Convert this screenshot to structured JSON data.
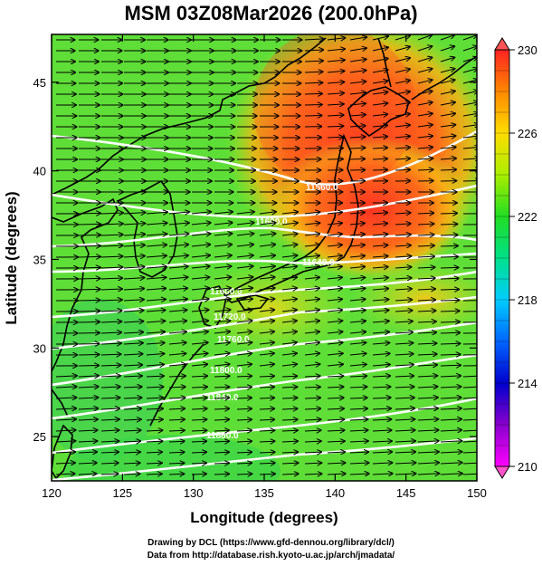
{
  "title": "MSM 03Z08Mar2026 (200.0hPa)",
  "x_axis": {
    "label": "Longitude (degrees)",
    "range": [
      120,
      150
    ],
    "ticks": [
      "120",
      "125",
      "130",
      "135",
      "140",
      "145",
      "150"
    ]
  },
  "y_axis": {
    "label": "Latitude  (degrees)",
    "range": [
      22.5,
      47.7
    ],
    "ticks": [
      "25",
      "30",
      "35",
      "40",
      "45"
    ]
  },
  "colorbar": {
    "range": [
      210,
      230
    ],
    "ticks": [
      "210",
      "214",
      "218",
      "222",
      "226",
      "230"
    ]
  },
  "contour_labels": [
    "11560.0",
    "11600.0",
    "11640.0",
    "11680.0",
    "11720.0",
    "11760.0",
    "11800.0",
    "11840.0",
    "11880.0"
  ],
  "credits": {
    "line1": "Drawing by DCL (https://www.gfd-dennou.org/library/dcl/)",
    "line2": "Data from http://database.rish.kyoto-u.ac.jp/arch/jmadata/"
  }
}
